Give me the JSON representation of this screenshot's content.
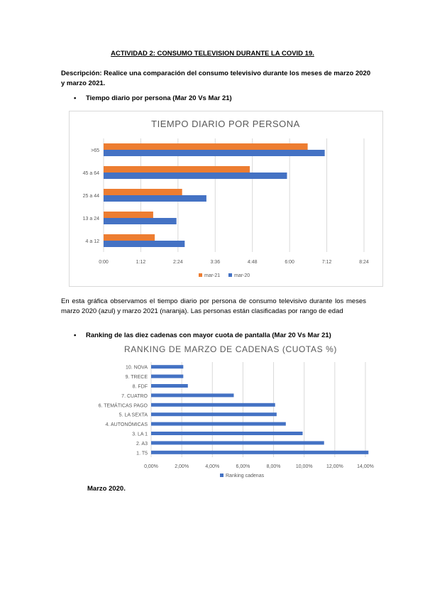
{
  "document": {
    "title": "ACTIVIDAD 2: CONSUMO TELEVISION DURANTE LA COVID 19.",
    "description": "Descripción: Realice una comparación del consumo televisivo durante los meses de marzo 2020 y marzo 2021.",
    "bullet1": "Tiempo diario por persona (Mar 20 Vs Mar 21)",
    "paragraph": "En esta gráfica observamos el tiempo diario por persona de consumo televisivo durante los meses marzo 2020 (azul) y marzo 2021 (naranja). Las personas están clasificadas por rango de edad",
    "bullet2": "Ranking de las diez cadenas con mayor cuota de pantalla (Mar 20 Vs Mar 21)",
    "caption": "Marzo 2020.",
    "bullet_symbol": "•"
  },
  "chart_data": [
    {
      "type": "bar",
      "orientation": "horizontal",
      "title": "TIEMPO DIARIO POR PERSONA",
      "categories": [
        ">65",
        "45 a 64",
        "25 a 44",
        "13 a 24",
        "4 a 12"
      ],
      "x_ticks": [
        "0:00",
        "1:12",
        "2:24",
        "3:36",
        "4:48",
        "6:00",
        "7:12",
        "8:24"
      ],
      "xlim_minutes": [
        0,
        504
      ],
      "series": [
        {
          "name": "mar-21",
          "color": "#ed7d31",
          "values_minutes": [
            395,
            283,
            152,
            96,
            99
          ]
        },
        {
          "name": "mar-20",
          "color": "#4472c4",
          "values_minutes": [
            428,
            355,
            199,
            141,
            157
          ]
        }
      ],
      "legend": "bottom",
      "grid": true
    },
    {
      "type": "bar",
      "orientation": "horizontal",
      "title": "RANKING DE MARZO DE CADENAS (CUOTAS %)",
      "categories": [
        "10. NOVA",
        "9. TRECE",
        "8. FDF",
        "7. CUATRO",
        "6. TEMÁTICAS PAGO",
        "5. LA SEXTA",
        "4. AUTONÓMICAS",
        "3. LA 1",
        "2. A3",
        "1. T5"
      ],
      "x_ticks": [
        "0,00%",
        "2,00%",
        "4,00%",
        "6,00%",
        "8,00%",
        "10,00%",
        "12,00%",
        "14,00%"
      ],
      "xlim": [
        0,
        14
      ],
      "series": [
        {
          "name": "Ranking cadenas",
          "color": "#4472c4",
          "values": [
            2.1,
            2.1,
            2.4,
            5.4,
            8.1,
            8.2,
            8.8,
            9.9,
            11.3,
            14.2
          ]
        }
      ],
      "legend": "bottom",
      "grid": true
    }
  ]
}
